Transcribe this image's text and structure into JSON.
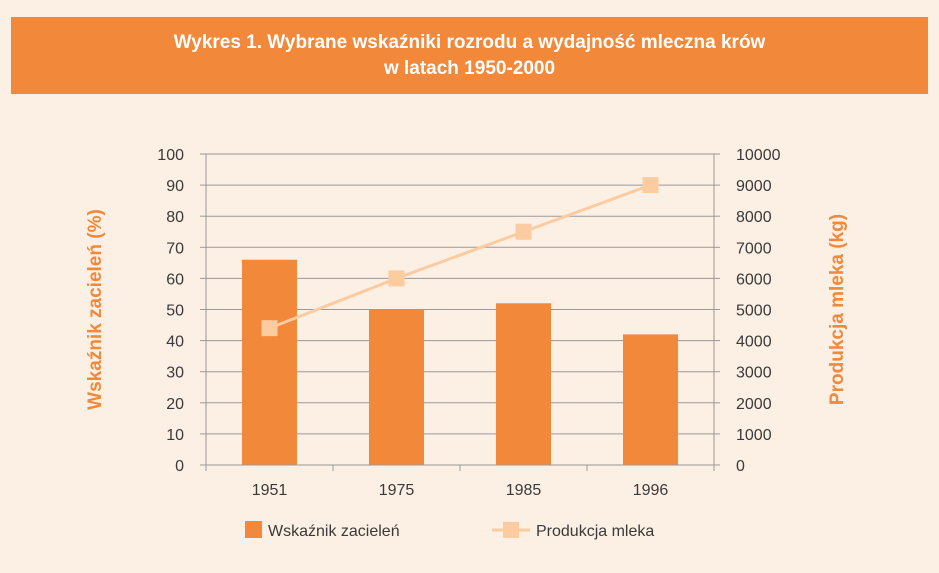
{
  "title": {
    "line1": "Wykres 1. Wybrane wskaźniki rozrodu a wydajność mleczna krów",
    "line2": "w latach 1950-2000"
  },
  "colors": {
    "background": "#fcefe3",
    "accent": "#f2883a",
    "line": "#fccba0",
    "grid": "#9a9a9a",
    "text": "#3a3a3a"
  },
  "chart_data": {
    "type": "bar",
    "categories": [
      "1951",
      "1975",
      "1985",
      "1996"
    ],
    "series": [
      {
        "name": "Wskaźnik zacieleń",
        "type": "bar",
        "axis": "left",
        "values": [
          66,
          50,
          52,
          42
        ]
      },
      {
        "name": "Produkcja mleka",
        "type": "line",
        "axis": "right",
        "values": [
          4400,
          6000,
          7500,
          9000
        ]
      }
    ],
    "y_left": {
      "label": "Wskaźnik zacieleń (%)",
      "min": 0,
      "max": 100,
      "step": 10
    },
    "y_right": {
      "label": "Produkcja mleka (kg)",
      "min": 0,
      "max": 10000,
      "step": 1000
    },
    "grid": true,
    "legend_position": "bottom"
  }
}
